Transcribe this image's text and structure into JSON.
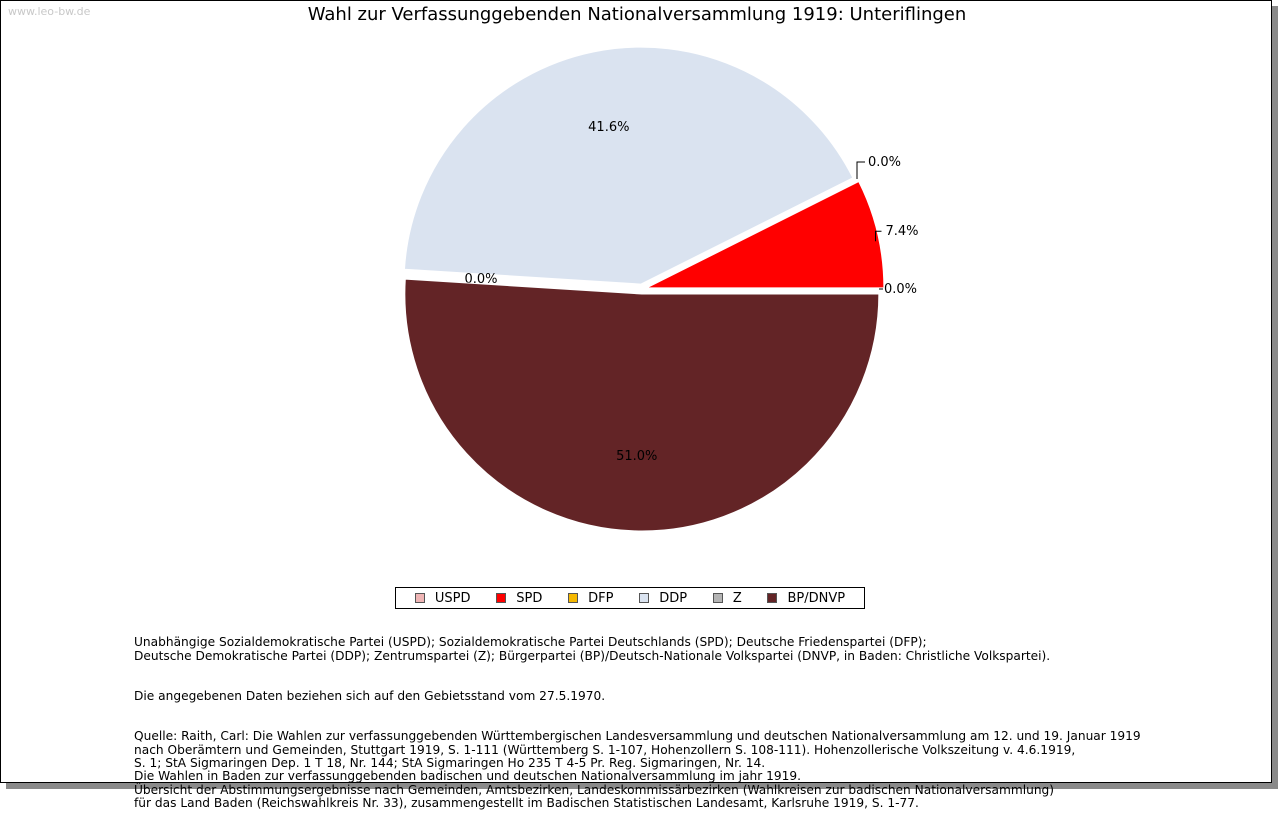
{
  "watermark": "www.leo-bw.de",
  "chart_data": {
    "type": "pie",
    "title": "Wahl zur Verfassunggebenden Nationalversammlung 1919: Unteriflingen",
    "slices": [
      {
        "name": "USPD",
        "value": 0.0,
        "label": "0.0%",
        "color": "#efb5b5"
      },
      {
        "name": "SPD",
        "value": 7.4,
        "label": "7.4%",
        "color": "#ff0000"
      },
      {
        "name": "DFP",
        "value": 0.0,
        "label": "0.0%",
        "color": "#f5b800"
      },
      {
        "name": "DDP",
        "value": 41.6,
        "label": "41.6%",
        "color": "#dae3f0"
      },
      {
        "name": "Z",
        "value": 0.0,
        "label": "0.0%",
        "color": "#b4b4b4"
      },
      {
        "name": "BP/DNVP",
        "value": 51.0,
        "label": "51.0%",
        "color": "#632426"
      }
    ],
    "legend_position": "bottom"
  },
  "notes": {
    "abbreviations": "Unabhängige Sozialdemokratische Partei (USPD); Sozialdemokratische Partei Deutschlands (SPD); Deutsche Friedenspartei (DFP);\nDeutsche Demokratische Partei (DDP); Zentrumspartei (Z); Bürgerpartei (BP)/Deutsch-Nationale Volkspartei (DNVP, in Baden: Christliche Volkspartei).",
    "territory": "Die angegebenen Daten beziehen sich auf den Gebietsstand vom 27.5.1970.",
    "source": "Quelle: Raith, Carl: Die Wahlen zur verfassunggebenden Württembergischen Landesversammlung und deutschen Nationalversammlung am 12. und 19. Januar 1919\nnach Oberämtern und Gemeinden, Stuttgart 1919, S. 1-111 (Württemberg S. 1-107, Hohenzollern S. 108-111). Hohenzollerische Volkszeitung v. 4.6.1919,\nS. 1; StA Sigmaringen Dep. 1 T 18, Nr. 144; StA Sigmaringen Ho 235 T 4-5 Pr. Reg. Sigmaringen, Nr. 14.\nDie Wahlen in Baden zur verfassunggebenden badischen und deutschen Nationalversammlung im jahr 1919.\nÜbersicht der Abstimmungsergebnisse nach Gemeinden, Amtsbezirken, Landeskommissärbezirken (Wahlkreisen zur badischen Nationalversammlung)\nfür das Land Baden (Reichswahlkreis Nr. 33), zusammengestellt im Badischen Statistischen Landesamt, Karlsruhe 1919, S. 1-77."
  }
}
